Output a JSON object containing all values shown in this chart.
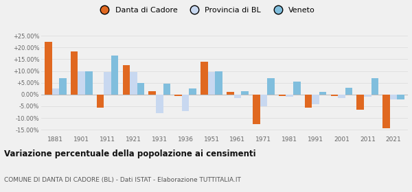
{
  "years": [
    1881,
    1901,
    1911,
    1921,
    1931,
    1936,
    1951,
    1961,
    1971,
    1981,
    1991,
    2001,
    2011,
    2021
  ],
  "danta": [
    22.5,
    18.5,
    -5.5,
    12.5,
    1.5,
    -0.5,
    14.0,
    1.0,
    -12.5,
    -0.5,
    -5.5,
    -0.5,
    -6.5,
    -14.5
  ],
  "provincia": [
    2.5,
    10.0,
    9.5,
    9.5,
    -8.0,
    -7.0,
    9.5,
    -1.5,
    -5.0,
    -1.0,
    -4.0,
    -1.5,
    -1.0,
    -2.0
  ],
  "veneto": [
    7.0,
    10.0,
    16.5,
    5.0,
    4.5,
    2.5,
    10.0,
    1.5,
    7.0,
    5.5,
    1.0,
    3.0,
    7.0,
    -2.0
  ],
  "color_danta": "#e06820",
  "color_provincia": "#c8d8f0",
  "color_veneto": "#80bedd",
  "yticks": [
    -15,
    -10,
    -5,
    0,
    5,
    10,
    15,
    20,
    25
  ],
  "ytick_labels": [
    "-15.00%",
    "-10.00%",
    "-5.00%",
    "0.00%",
    "+5.00%",
    "+10.00%",
    "+15.00%",
    "+20.00%",
    "+25.00%"
  ],
  "ylim": [
    -17,
    28
  ],
  "title": "Variazione percentuale della popolazione ai censimenti",
  "subtitle": "COMUNE DI DANTA DI CADORE (BL) - Dati ISTAT - Elaborazione TUTTITALIA.IT",
  "legend_labels": [
    "Danta di Cadore",
    "Provincia di BL",
    "Veneto"
  ],
  "bar_width": 0.28,
  "bg_color": "#f0f0f0",
  "grid_color": "#dddddd"
}
